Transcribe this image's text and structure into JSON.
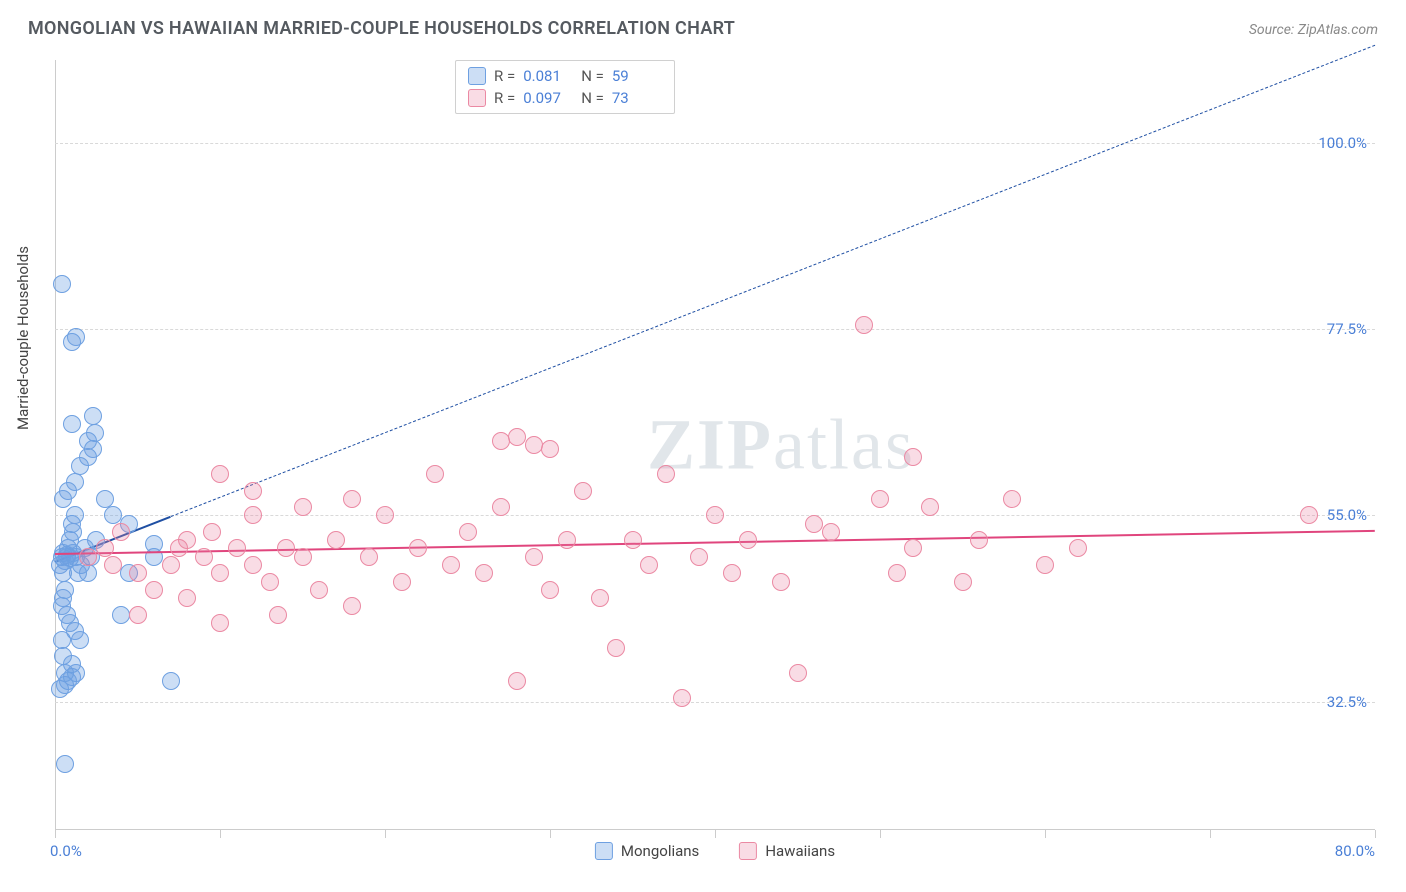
{
  "title": "MONGOLIAN VS HAWAIIAN MARRIED-COUPLE HOUSEHOLDS CORRELATION CHART",
  "source": "Source: ZipAtlas.com",
  "y_axis_label": "Married-couple Households",
  "watermark": "ZIPatlas",
  "chart": {
    "type": "scatter",
    "xlim": [
      0,
      80
    ],
    "ylim": [
      17,
      110
    ],
    "x_start_label": "0.0%",
    "x_end_label": "80.0%",
    "y_ticks": [
      {
        "v": 32.5,
        "label": "32.5%"
      },
      {
        "v": 55.0,
        "label": "55.0%"
      },
      {
        "v": 77.5,
        "label": "77.5%"
      },
      {
        "v": 100.0,
        "label": "100.0%"
      }
    ],
    "x_tick_positions": [
      0,
      10,
      20,
      30,
      40,
      50,
      60,
      70,
      80
    ],
    "background_color": "#ffffff",
    "grid_color": "#d9d9d9",
    "dot_radius": 9,
    "dot_stroke_width": 1.2,
    "series": [
      {
        "name": "Mongolians",
        "fill": "rgba(110,160,225,0.35)",
        "stroke": "#6ea0e1",
        "R": "0.081",
        "N": "59",
        "trend": {
          "color": "#1f4fa3",
          "solid_range": [
            0,
            7
          ],
          "dashed_to_x": 80,
          "y_start": 49.5,
          "slope": 0.78
        },
        "points": [
          [
            0.3,
            49
          ],
          [
            0.4,
            50
          ],
          [
            0.5,
            50.5
          ],
          [
            0.6,
            49.5
          ],
          [
            0.8,
            51
          ],
          [
            0.5,
            48
          ],
          [
            0.7,
            50
          ],
          [
            0.9,
            52
          ],
          [
            1.0,
            54
          ],
          [
            1.2,
            55
          ],
          [
            1.1,
            53
          ],
          [
            0.6,
            46
          ],
          [
            0.5,
            45
          ],
          [
            0.4,
            44
          ],
          [
            0.7,
            43
          ],
          [
            0.9,
            42
          ],
          [
            1.2,
            41
          ],
          [
            1.5,
            40
          ],
          [
            0.4,
            40
          ],
          [
            0.5,
            38
          ],
          [
            1.0,
            37
          ],
          [
            1.3,
            36
          ],
          [
            0.6,
            36
          ],
          [
            0.8,
            35
          ],
          [
            1.0,
            35.5
          ],
          [
            0.6,
            34.5
          ],
          [
            0.3,
            34
          ],
          [
            0.6,
            25
          ],
          [
            0.5,
            57
          ],
          [
            0.8,
            58
          ],
          [
            1.2,
            59
          ],
          [
            1.5,
            61
          ],
          [
            2.0,
            62
          ],
          [
            2.3,
            63
          ],
          [
            2.0,
            64
          ],
          [
            2.4,
            65
          ],
          [
            2.3,
            67
          ],
          [
            1.0,
            66
          ],
          [
            1.0,
            76
          ],
          [
            1.3,
            76.5
          ],
          [
            0.4,
            83
          ],
          [
            7.0,
            35
          ],
          [
            6.0,
            50
          ],
          [
            6.0,
            51.5
          ],
          [
            4.5,
            54
          ],
          [
            4.5,
            48
          ],
          [
            4.0,
            43
          ],
          [
            3.5,
            55
          ],
          [
            3.0,
            57
          ],
          [
            2.5,
            52
          ],
          [
            2.0,
            48
          ],
          [
            2.2,
            50
          ],
          [
            1.8,
            51
          ],
          [
            1.6,
            49
          ],
          [
            1.4,
            48
          ],
          [
            1.3,
            50
          ],
          [
            1.1,
            50.5
          ],
          [
            0.9,
            49.8
          ],
          [
            0.7,
            50.2
          ]
        ]
      },
      {
        "name": "Hawaiians",
        "fill": "rgba(235,130,160,0.28)",
        "stroke": "#eb89a3",
        "R": "0.097",
        "N": "73",
        "trend": {
          "color": "#e0457d",
          "solid_range": [
            0,
            80
          ],
          "y_start": 50.5,
          "slope": 0.035
        },
        "points": [
          [
            2,
            50
          ],
          [
            3,
            51
          ],
          [
            3.5,
            49
          ],
          [
            4,
            53
          ],
          [
            5,
            48
          ],
          [
            5,
            43
          ],
          [
            6,
            46
          ],
          [
            7,
            49
          ],
          [
            7.5,
            51
          ],
          [
            8,
            52
          ],
          [
            8,
            45
          ],
          [
            9,
            50
          ],
          [
            9.5,
            53
          ],
          [
            10,
            48
          ],
          [
            10,
            42
          ],
          [
            11,
            51
          ],
          [
            12,
            55
          ],
          [
            12,
            49
          ],
          [
            13,
            47
          ],
          [
            13.5,
            43
          ],
          [
            14,
            51
          ],
          [
            15,
            56
          ],
          [
            15,
            50
          ],
          [
            16,
            46
          ],
          [
            17,
            52
          ],
          [
            18,
            57
          ],
          [
            18,
            44
          ],
          [
            19,
            50
          ],
          [
            20,
            55
          ],
          [
            21,
            47
          ],
          [
            22,
            51
          ],
          [
            23,
            60
          ],
          [
            24,
            49
          ],
          [
            25,
            53
          ],
          [
            26,
            48
          ],
          [
            27,
            56
          ],
          [
            27,
            64
          ],
          [
            28,
            64.5
          ],
          [
            28,
            35
          ],
          [
            29,
            50
          ],
          [
            30,
            46
          ],
          [
            31,
            52
          ],
          [
            32,
            58
          ],
          [
            33,
            45
          ],
          [
            34,
            39
          ],
          [
            35,
            52
          ],
          [
            36,
            49
          ],
          [
            38,
            33
          ],
          [
            39,
            50
          ],
          [
            40,
            55
          ],
          [
            41,
            48
          ],
          [
            42,
            52
          ],
          [
            44,
            47
          ],
          [
            45,
            36
          ],
          [
            46,
            54
          ],
          [
            47,
            53
          ],
          [
            49,
            78
          ],
          [
            50,
            57
          ],
          [
            51,
            48
          ],
          [
            52,
            51
          ],
          [
            53,
            56
          ],
          [
            55,
            47
          ],
          [
            56,
            52
          ],
          [
            58,
            57
          ],
          [
            60,
            49
          ],
          [
            62,
            51
          ],
          [
            76,
            55
          ],
          [
            52,
            62
          ],
          [
            37,
            60
          ],
          [
            30,
            63
          ],
          [
            29,
            63.5
          ],
          [
            10,
            60
          ],
          [
            12,
            58
          ]
        ]
      }
    ],
    "legend_labels": {
      "R": "R  =",
      "N": "N  ="
    }
  }
}
